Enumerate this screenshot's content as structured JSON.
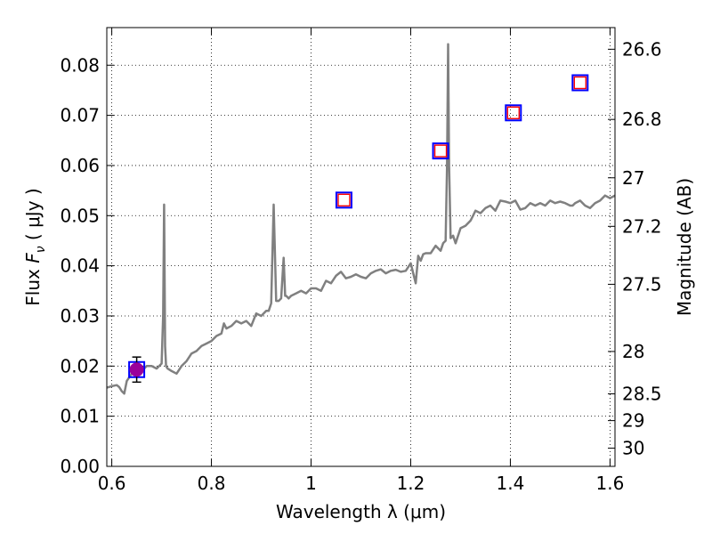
{
  "chart_data": {
    "type": "line",
    "xlabel": "Wavelength  λ (μm)",
    "ylabel": "Flux  F_ν  ( μJy )",
    "ylabel_parts": {
      "prefix": "Flux  ",
      "symbol": "F",
      "subscript": "ν",
      "suffix": "  ( μJy )"
    },
    "y2label": "Magnitude (AB)",
    "xlim": [
      0.59,
      1.61
    ],
    "ylim": [
      0.0,
      0.0875
    ],
    "grid": true,
    "x_ticks": [
      0.6,
      0.8,
      1.0,
      1.2,
      1.4,
      1.6
    ],
    "x_tick_labels": [
      "0.6",
      "0.8",
      "1",
      "1.2",
      "1.4",
      "1.6"
    ],
    "y_ticks": [
      0.0,
      0.01,
      0.02,
      0.03,
      0.04,
      0.05,
      0.06,
      0.07,
      0.08
    ],
    "y_tick_labels": [
      "0.00",
      "0.01",
      "0.02",
      "0.03",
      "0.04",
      "0.05",
      "0.06",
      "0.07",
      "0.08"
    ],
    "y2_ticks": [
      26.6,
      26.8,
      27.0,
      27.2,
      27.5,
      28.0,
      28.5,
      29.0,
      30.0
    ],
    "y2_tick_labels": [
      "26.6",
      "26.8",
      "27",
      "27.2",
      "27.5",
      "28",
      "28.5",
      "29",
      "30"
    ],
    "series": [
      {
        "name": "model spectrum",
        "kind": "line",
        "color": "#808080",
        "x": [
          0.59,
          0.6,
          0.61,
          0.615,
          0.62,
          0.625,
          0.63,
          0.64,
          0.65,
          0.66,
          0.67,
          0.68,
          0.69,
          0.7,
          0.703,
          0.705,
          0.707,
          0.709,
          0.712,
          0.72,
          0.73,
          0.74,
          0.75,
          0.76,
          0.77,
          0.78,
          0.79,
          0.8,
          0.81,
          0.82,
          0.825,
          0.83,
          0.84,
          0.85,
          0.86,
          0.87,
          0.88,
          0.89,
          0.9,
          0.91,
          0.915,
          0.92,
          0.925,
          0.93,
          0.935,
          0.94,
          0.945,
          0.948,
          0.95,
          0.955,
          0.96,
          0.97,
          0.98,
          0.99,
          1.0,
          1.01,
          1.02,
          1.03,
          1.04,
          1.05,
          1.06,
          1.07,
          1.08,
          1.09,
          1.1,
          1.11,
          1.12,
          1.13,
          1.14,
          1.15,
          1.16,
          1.17,
          1.18,
          1.19,
          1.2,
          1.21,
          1.215,
          1.22,
          1.225,
          1.23,
          1.24,
          1.25,
          1.26,
          1.265,
          1.27,
          1.273,
          1.275,
          1.277,
          1.28,
          1.285,
          1.29,
          1.3,
          1.31,
          1.32,
          1.33,
          1.34,
          1.35,
          1.36,
          1.37,
          1.38,
          1.39,
          1.4,
          1.41,
          1.42,
          1.43,
          1.44,
          1.45,
          1.46,
          1.47,
          1.48,
          1.49,
          1.5,
          1.51,
          1.52,
          1.525,
          1.53,
          1.54,
          1.55,
          1.56,
          1.57,
          1.58,
          1.59,
          1.6,
          1.61
        ],
        "y": [
          0.0157,
          0.016,
          0.0162,
          0.0158,
          0.015,
          0.0145,
          0.017,
          0.0185,
          0.0195,
          0.019,
          0.02,
          0.02,
          0.0195,
          0.0205,
          0.03,
          0.0522,
          0.024,
          0.02,
          0.0195,
          0.019,
          0.0185,
          0.02,
          0.021,
          0.0225,
          0.023,
          0.024,
          0.0245,
          0.025,
          0.026,
          0.0265,
          0.0285,
          0.0275,
          0.028,
          0.029,
          0.0285,
          0.029,
          0.028,
          0.0305,
          0.03,
          0.031,
          0.031,
          0.0325,
          0.0522,
          0.033,
          0.033,
          0.0335,
          0.0416,
          0.034,
          0.034,
          0.0335,
          0.034,
          0.0345,
          0.035,
          0.0345,
          0.0355,
          0.0355,
          0.035,
          0.037,
          0.0365,
          0.038,
          0.0388,
          0.0375,
          0.0378,
          0.0383,
          0.0378,
          0.0375,
          0.0385,
          0.039,
          0.0393,
          0.0385,
          0.039,
          0.0392,
          0.0388,
          0.039,
          0.0405,
          0.0365,
          0.042,
          0.041,
          0.0423,
          0.0425,
          0.0425,
          0.044,
          0.043,
          0.0445,
          0.045,
          0.06,
          0.0842,
          0.06,
          0.0455,
          0.046,
          0.0445,
          0.0475,
          0.048,
          0.049,
          0.051,
          0.0505,
          0.0515,
          0.052,
          0.051,
          0.053,
          0.0528,
          0.0525,
          0.053,
          0.0512,
          0.0515,
          0.0525,
          0.052,
          0.0525,
          0.052,
          0.053,
          0.0525,
          0.0528,
          0.0525,
          0.052,
          0.052,
          0.0525,
          0.053,
          0.052,
          0.0515,
          0.0525,
          0.053,
          0.054,
          0.0535,
          0.054
        ]
      },
      {
        "name": "emission-line spikes",
        "kind": "line",
        "color": "#808080",
        "x": [
          0.7048,
          0.7052,
          0.9235,
          0.9265,
          0.9465,
          0.9485,
          1.2745,
          1.2765
        ],
        "y": [
          0.0522,
          0.0522,
          0.0522,
          0.0522,
          0.0416,
          0.0416,
          0.0842,
          0.0842
        ]
      },
      {
        "name": "photometry (observed)",
        "kind": "markers",
        "marker": "square-open",
        "color": "#0000ff",
        "x": [
          0.65,
          1.066,
          1.26,
          1.406,
          1.54
        ],
        "y": [
          0.0193,
          0.0531,
          0.0629,
          0.0705,
          0.0765
        ]
      },
      {
        "name": "photometry (model)",
        "kind": "markers",
        "marker": "square-open-small",
        "color": "#ff0000",
        "x": [
          1.066,
          1.26,
          1.406,
          1.54
        ],
        "y": [
          0.0531,
          0.0629,
          0.0705,
          0.0765
        ]
      },
      {
        "name": "detection",
        "kind": "markers",
        "marker": "circle-filled",
        "color": "#9a009a",
        "x": [
          0.65
        ],
        "y": [
          0.0193
        ],
        "yerr": [
          0.0025
        ]
      }
    ]
  },
  "colors": {
    "spectrum": "#808080",
    "obs_square": "#0000ff",
    "model_square": "#ff0000",
    "detection": "#9a009a",
    "grid": "#000000"
  }
}
